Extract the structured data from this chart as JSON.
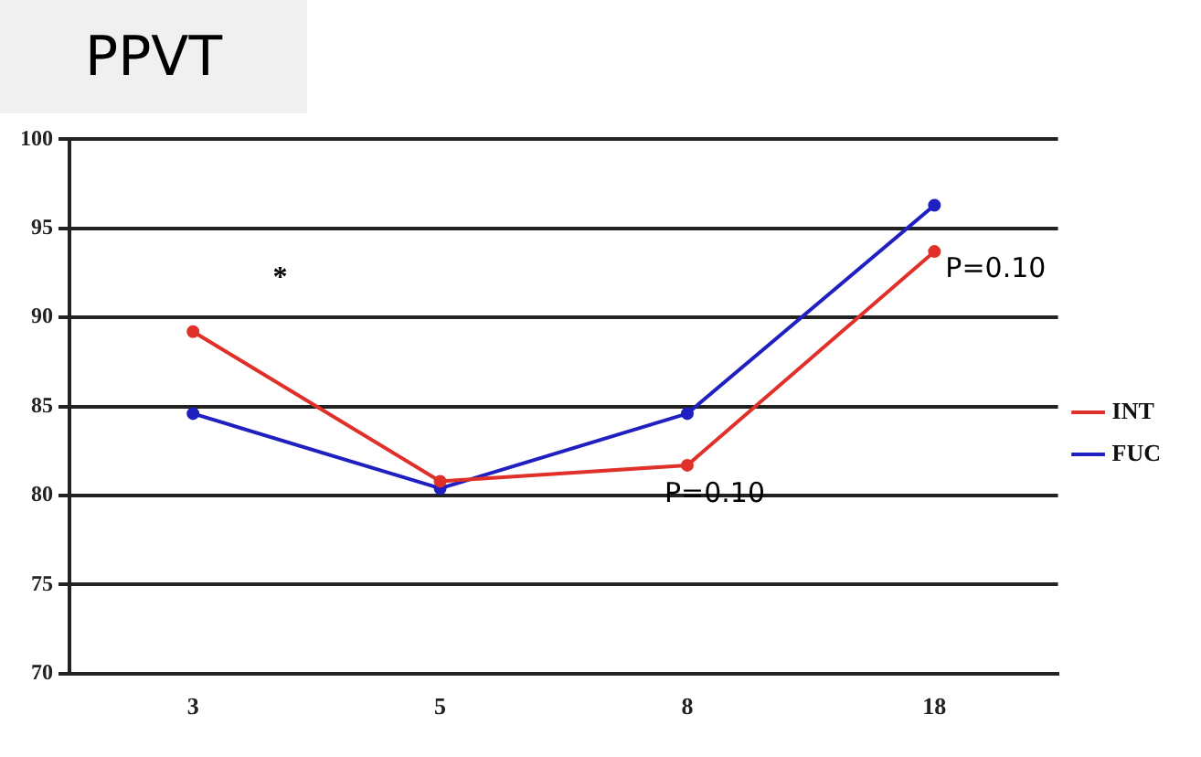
{
  "chart_data": {
    "type": "line",
    "title": "PPVT",
    "categories": [
      "3",
      "5",
      "8",
      "18"
    ],
    "series": [
      {
        "name": "INT",
        "color": "#e0302a",
        "values": [
          89.2,
          80.8,
          81.7,
          93.7
        ]
      },
      {
        "name": "FUC",
        "color": "#2020c0",
        "values": [
          84.6,
          80.4,
          84.6,
          96.3
        ]
      }
    ],
    "ylim": [
      70,
      100
    ],
    "yticks": [
      70,
      75,
      80,
      85,
      90,
      95,
      100
    ],
    "grid": "y",
    "legend": "right",
    "marker": "circle",
    "annotations": [
      "*",
      {
        "text": "P=0.10",
        "x": "18",
        "y": 93.7
      },
      {
        "text": "P=0.10",
        "x": "8",
        "y": 81.7
      }
    ]
  }
}
